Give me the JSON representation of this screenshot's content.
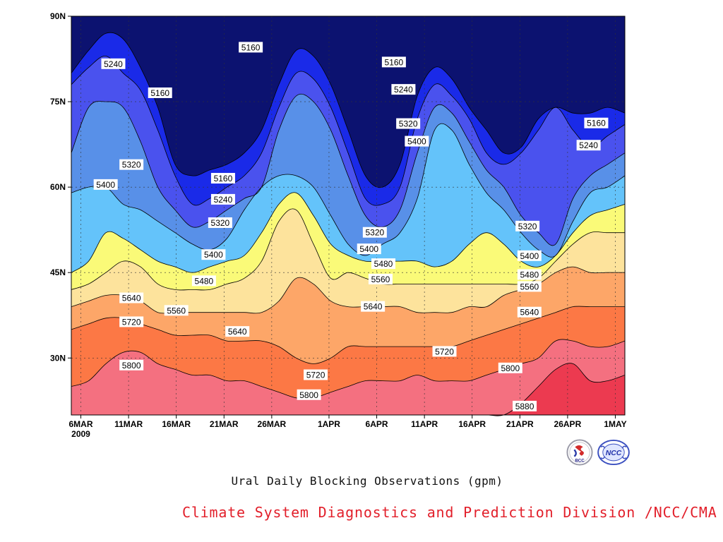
{
  "chart_data": {
    "type": "heatmap",
    "subtype": "filled-contour",
    "title": "",
    "xlabel": "",
    "ylabel": "",
    "x_tick_labels": [
      "6MAR",
      "11MAR",
      "16MAR",
      "21MAR",
      "26MAR",
      "1APR",
      "6APR",
      "11APR",
      "16APR",
      "21APR",
      "26APR",
      "1MAY"
    ],
    "x_tick_days_since_6MAR": [
      0,
      5,
      10,
      15,
      20,
      26,
      31,
      36,
      41,
      46,
      51,
      56
    ],
    "year_label": "2009",
    "x_range": [
      "2009-03-05",
      "2009-05-02"
    ],
    "y_tick_labels": [
      "30N",
      "45N",
      "60N",
      "75N",
      "90N"
    ],
    "y_ticks_deg": [
      30,
      45,
      60,
      75,
      90
    ],
    "y_range_deg": [
      20,
      90
    ],
    "grid": "dotted",
    "contour_levels": [
      5160,
      5240,
      5320,
      5400,
      5480,
      5560,
      5640,
      5720,
      5800,
      5880
    ],
    "fill_colors": [
      "#0c1270",
      "#1a2ae8",
      "#4a52ee",
      "#5890e8",
      "#64c3fa",
      "#fafa78",
      "#fde39c",
      "#fda668",
      "#fc7845",
      "#f47080",
      "#ec3a50"
    ],
    "contours": [
      {
        "level": 5160,
        "lat": [
          80,
          84,
          87,
          86,
          81,
          74,
          64,
          62,
          63,
          64,
          66,
          70,
          78,
          84,
          83,
          78,
          70,
          62,
          60,
          64,
          76,
          81,
          79,
          74,
          70,
          66,
          67,
          72,
          74,
          73,
          73,
          74,
          73
        ]
      },
      {
        "level": 5240,
        "lat": [
          78,
          81,
          83,
          80,
          77,
          70,
          62,
          57,
          58,
          60,
          62,
          66,
          74,
          80,
          79,
          74,
          66,
          58,
          57,
          60,
          72,
          78,
          76,
          72,
          66,
          64,
          66,
          70,
          74,
          70,
          67,
          69,
          71
        ]
      },
      {
        "level": 5320,
        "lat": [
          66,
          74,
          75,
          74,
          68,
          60,
          56,
          53,
          54,
          56,
          58,
          60,
          70,
          76,
          75,
          70,
          62,
          55,
          53,
          56,
          66,
          74,
          73,
          68,
          63,
          60,
          55,
          52,
          50,
          58,
          62,
          64,
          66
        ]
      },
      {
        "level": 5400,
        "lat": [
          59,
          60,
          60,
          57,
          56,
          54,
          52,
          50,
          49,
          51,
          56,
          60,
          62,
          62,
          60,
          55,
          50,
          48,
          50,
          52,
          58,
          70,
          70,
          64,
          59,
          56,
          52,
          49,
          48,
          54,
          59,
          60,
          62
        ]
      },
      {
        "level": 5480,
        "lat": [
          45,
          47,
          52,
          51,
          49,
          47,
          46,
          45,
          46,
          47,
          48,
          52,
          57,
          59,
          55,
          50,
          48,
          47,
          47,
          47,
          47,
          46,
          47,
          50,
          52,
          50,
          47,
          46,
          48,
          52,
          55,
          56,
          57
        ]
      },
      {
        "level": 5560,
        "lat": [
          42,
          43,
          45,
          47,
          46,
          43,
          42,
          42,
          42,
          43,
          44,
          47,
          54,
          56,
          50,
          44,
          45,
          44,
          43,
          43,
          43,
          43,
          43,
          43,
          43,
          43,
          43,
          44,
          47,
          50,
          52,
          52,
          52
        ]
      },
      {
        "level": 5640,
        "lat": [
          39,
          40,
          41,
          41,
          40,
          38,
          38,
          38,
          38,
          38,
          38,
          38,
          40,
          44,
          43,
          40,
          39,
          39,
          39,
          39,
          38,
          38,
          38,
          39,
          39,
          41,
          42,
          43,
          45,
          46,
          45,
          45,
          45
        ]
      },
      {
        "level": 5720,
        "lat": [
          35,
          36,
          37,
          37,
          36,
          35,
          34,
          34,
          34,
          33,
          33,
          33,
          32,
          30,
          29,
          30,
          32,
          32,
          32,
          32,
          32,
          32,
          32,
          33,
          34,
          35,
          36,
          37,
          38,
          39,
          39,
          39,
          39
        ]
      },
      {
        "level": 5800,
        "lat": [
          25,
          26,
          29,
          31,
          31,
          29,
          28,
          27,
          27,
          26,
          26,
          25,
          24,
          23,
          23,
          24,
          25,
          26,
          26,
          26,
          27,
          26,
          26,
          26,
          27,
          28,
          29,
          30,
          33,
          33,
          32,
          32,
          33
        ]
      },
      {
        "level": 5880,
        "lat": [
          20,
          20,
          20,
          20,
          20,
          20,
          20,
          20,
          20,
          20,
          20,
          20,
          20,
          20,
          20,
          20,
          20,
          20,
          20,
          20,
          20,
          20,
          20,
          20,
          20,
          20,
          22,
          25,
          28,
          29,
          26,
          26,
          27
        ]
      }
    ],
    "contour_labels": [
      {
        "text": "5240",
        "day": 3.4,
        "lat": 81.6
      },
      {
        "text": "5160",
        "day": 8.3,
        "lat": 76.5
      },
      {
        "text": "5320",
        "day": 5.3,
        "lat": 63.9
      },
      {
        "text": "5400",
        "day": 2.6,
        "lat": 60.4
      },
      {
        "text": "5160",
        "day": 17.8,
        "lat": 84.5
      },
      {
        "text": "5160",
        "day": 14.9,
        "lat": 61.5
      },
      {
        "text": "5240",
        "day": 14.9,
        "lat": 57.8
      },
      {
        "text": "5320",
        "day": 14.6,
        "lat": 53.7
      },
      {
        "text": "5400",
        "day": 13.9,
        "lat": 48.1
      },
      {
        "text": "5480",
        "day": 12.9,
        "lat": 43.5
      },
      {
        "text": "5560",
        "day": 10.0,
        "lat": 38.3
      },
      {
        "text": "5640",
        "day": 5.3,
        "lat": 40.5
      },
      {
        "text": "5720",
        "day": 5.3,
        "lat": 36.3
      },
      {
        "text": "5800",
        "day": 5.3,
        "lat": 28.7
      },
      {
        "text": "5640",
        "day": 16.4,
        "lat": 34.6
      },
      {
        "text": "5720",
        "day": 24.6,
        "lat": 27.0
      },
      {
        "text": "5800",
        "day": 23.9,
        "lat": 23.5
      },
      {
        "text": "5160",
        "day": 32.8,
        "lat": 81.9
      },
      {
        "text": "5240",
        "day": 33.8,
        "lat": 77.1
      },
      {
        "text": "5320",
        "day": 34.3,
        "lat": 71.1
      },
      {
        "text": "5400",
        "day": 35.2,
        "lat": 68.0
      },
      {
        "text": "5320",
        "day": 30.8,
        "lat": 52.0
      },
      {
        "text": "5400",
        "day": 30.2,
        "lat": 49.1
      },
      {
        "text": "5480",
        "day": 31.7,
        "lat": 46.5
      },
      {
        "text": "5560",
        "day": 31.4,
        "lat": 43.8
      },
      {
        "text": "5640",
        "day": 30.6,
        "lat": 39.0
      },
      {
        "text": "5720",
        "day": 38.1,
        "lat": 31.1
      },
      {
        "text": "5160",
        "day": 54.0,
        "lat": 71.2
      },
      {
        "text": "5240",
        "day": 53.2,
        "lat": 67.3
      },
      {
        "text": "5320",
        "day": 46.8,
        "lat": 53.1
      },
      {
        "text": "5400",
        "day": 47.0,
        "lat": 47.9
      },
      {
        "text": "5480",
        "day": 47.0,
        "lat": 44.6
      },
      {
        "text": "5560",
        "day": 47.0,
        "lat": 42.5
      },
      {
        "text": "5640",
        "day": 47.0,
        "lat": 38.0
      },
      {
        "text": "5800",
        "day": 45.0,
        "lat": 28.2
      },
      {
        "text": "5880",
        "day": 46.5,
        "lat": 21.5
      }
    ]
  },
  "caption": "Ural Daily Blocking Observations (gpm)",
  "credit": "Climate System Diagnostics and Prediction Division /NCC/CMA",
  "logos": {
    "left_text": "BCC",
    "right_text": "NCC"
  }
}
